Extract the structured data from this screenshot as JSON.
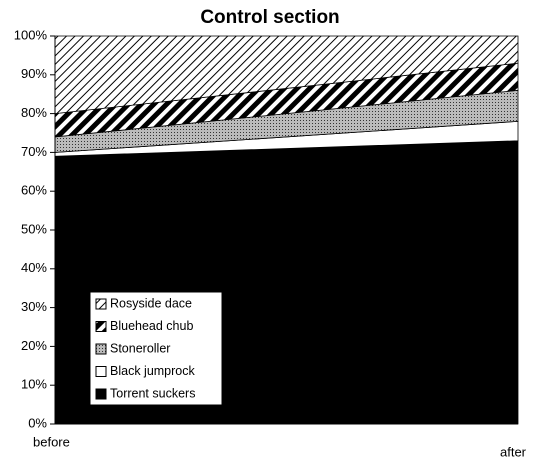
{
  "chart_data": {
    "type": "stacked_area",
    "title": "Control section",
    "categories": [
      "before",
      "after"
    ],
    "series": [
      {
        "name": "Torrent suckers",
        "color": "#000000",
        "pattern": "solid",
        "values": [
          69,
          73
        ]
      },
      {
        "name": "Black jumprock",
        "color": "#ffffff",
        "pattern": "solid",
        "values": [
          1,
          5
        ]
      },
      {
        "name": "Stoneroller",
        "color": "#8c8c8c",
        "pattern": "stipple",
        "values": [
          4,
          8
        ]
      },
      {
        "name": "Bluehead chub",
        "color": "#000000",
        "pattern": "hatch-heavy",
        "values": [
          6,
          7
        ]
      },
      {
        "name": "Rosyside dace",
        "color": "#000000",
        "pattern": "hatch-light",
        "values": [
          20,
          7
        ]
      }
    ],
    "ylim": [
      0,
      100
    ],
    "yticks": [
      {
        "value": 0,
        "label": "0%"
      },
      {
        "value": 10,
        "label": "10%"
      },
      {
        "value": 20,
        "label": "20%"
      },
      {
        "value": 30,
        "label": "30%"
      },
      {
        "value": 40,
        "label": "40%"
      },
      {
        "value": 50,
        "label": "50%"
      },
      {
        "value": 60,
        "label": "60%"
      },
      {
        "value": 70,
        "label": "70%"
      },
      {
        "value": 80,
        "label": "80%"
      },
      {
        "value": 90,
        "label": "90%"
      },
      {
        "value": 100,
        "label": "100%"
      }
    ],
    "legend": "lower-left"
  }
}
